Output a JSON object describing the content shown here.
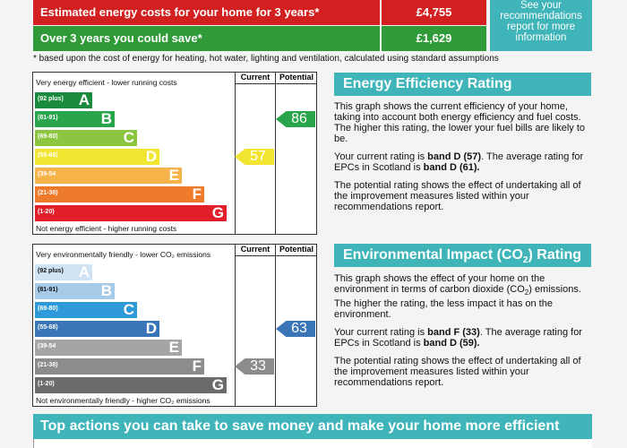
{
  "costs": {
    "estimated_label": "Estimated energy costs for your home for 3 years*",
    "estimated_value": "£4,755",
    "save_label": "Over 3 years you could save*",
    "save_value": "£1,629",
    "see_box": [
      "See your",
      "recommendations",
      "report for more",
      "information"
    ],
    "footnote": "* based upon the cost of energy for heating, hot water, lighting and ventilation, calculated using standard assumptions"
  },
  "energy_chart": {
    "header_current": "Current",
    "header_potential": "Potential",
    "top_text": "Very energy efficient - lower running costs",
    "bottom_text": "Not energy efficient - higher running costs",
    "bands": [
      {
        "range": "(92 plus)",
        "letter": "A",
        "color": "#1a8a3c"
      },
      {
        "range": "(81-91)",
        "letter": "B",
        "color": "#2aa54b"
      },
      {
        "range": "(69-80)",
        "letter": "C",
        "color": "#8cc640"
      },
      {
        "range": "(55-68)",
        "letter": "D",
        "color": "#f2e531"
      },
      {
        "range": "(39-54",
        "letter": "E",
        "color": "#f6b34a"
      },
      {
        "range": "(21-38)",
        "letter": "F",
        "color": "#ee7a2c"
      },
      {
        "range": "(1-20)",
        "letter": "G",
        "color": "#e21e2b"
      }
    ],
    "current": {
      "value": "57",
      "color": "#f2e531"
    },
    "potential": {
      "value": "86",
      "color": "#2aa54b"
    }
  },
  "env_chart": {
    "header_current": "Current",
    "header_potential": "Potential",
    "top_text": "Very environmentally friendly - lower CO₂ emissions",
    "bottom_text": "Not environmentally friendly - higher CO₂ emissions",
    "bands": [
      {
        "range": "(92 plus)",
        "letter": "A",
        "color": "#cfe3f4"
      },
      {
        "range": "(81-91)",
        "letter": "B",
        "color": "#a6cbe9"
      },
      {
        "range": "(69-80)",
        "letter": "C",
        "color": "#2f9ad8"
      },
      {
        "range": "(55-68)",
        "letter": "D",
        "color": "#3a75b8"
      },
      {
        "range": "(39-54",
        "letter": "E",
        "color": "#a5a5a5"
      },
      {
        "range": "(21-38)",
        "letter": "F",
        "color": "#8c8c8c"
      },
      {
        "range": "(1-20)",
        "letter": "G",
        "color": "#6b6b6b"
      }
    ],
    "current": {
      "value": "33",
      "color": "#8c8c8c"
    },
    "potential": {
      "value": "63",
      "color": "#3a75b8"
    }
  },
  "eer_panel": {
    "title": "Energy Efficiency Rating",
    "p1": "This graph shows the current efficiency of your home, taking into account both energy efficiency and fuel costs. The higher this rating, the lower your fuel bills are likely to be.",
    "p2_pre": "Your current rating is ",
    "p2_b1": "band D (57)",
    "p2_mid": ". The average rating for EPCs in Scotland is ",
    "p2_b2": "band D (61).",
    "p3": "The potential rating shows the effect of undertaking all of the improvement measures listed within your recommendations report."
  },
  "eir_panel": {
    "title_pre": "Environmental Impact (CO",
    "title_sub": "2",
    "title_post": ") Rating",
    "p1_a": "This graph shows the effect of your home on the environment in terms of carbon dioxide (CO",
    "p1_sub": "2",
    "p1_b": ") emissions. The higher the rating, the less impact it has on the environment.",
    "p2_pre": "Your current rating is ",
    "p2_b1": "band F (33)",
    "p2_mid": ". The average rating for EPCs in Scotland is ",
    "p2_b2": "band D (59).",
    "p3": "The potential rating shows the effect of undertaking all of the improvement measures listed within your recommendations report."
  },
  "bottom_bar": "Top actions you can take to save money and make your home more efficient"
}
